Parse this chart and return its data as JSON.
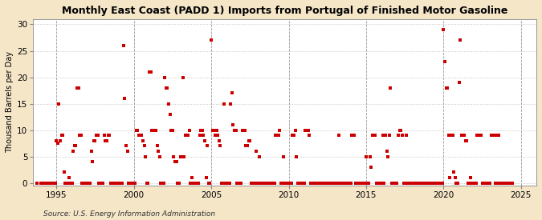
{
  "title": "Monthly East Coast (PADD 1) Imports from Portugal of Finished Motor Gasoline",
  "ylabel": "Thousand Barrels per Day",
  "source": "Source: U.S. Energy Information Administration",
  "figure_bg": "#f5e6c8",
  "axes_bg": "#ffffff",
  "marker_color": "#cc0000",
  "grid_color": "#bbbbbb",
  "vline_color": "#999999",
  "xlim": [
    1993.5,
    2026.0
  ],
  "ylim": [
    -0.5,
    31
  ],
  "yticks": [
    0,
    5,
    10,
    15,
    20,
    25,
    30
  ],
  "xticks": [
    1995,
    2000,
    2005,
    2010,
    2015,
    2020,
    2025
  ],
  "data": [
    [
      1993.75,
      0
    ],
    [
      1994.0,
      0
    ],
    [
      1994.083,
      0
    ],
    [
      1994.167,
      0
    ],
    [
      1994.25,
      0
    ],
    [
      1994.333,
      0
    ],
    [
      1994.417,
      0
    ],
    [
      1994.5,
      0
    ],
    [
      1994.583,
      0
    ],
    [
      1994.667,
      0
    ],
    [
      1994.75,
      0
    ],
    [
      1994.833,
      0
    ],
    [
      1994.917,
      0
    ],
    [
      1995.0,
      8
    ],
    [
      1995.083,
      7.5
    ],
    [
      1995.167,
      15
    ],
    [
      1995.25,
      8
    ],
    [
      1995.333,
      9
    ],
    [
      1995.417,
      9
    ],
    [
      1995.5,
      2
    ],
    [
      1995.583,
      0
    ],
    [
      1995.667,
      0
    ],
    [
      1995.75,
      0
    ],
    [
      1995.833,
      1
    ],
    [
      1995.917,
      0
    ],
    [
      1996.0,
      0
    ],
    [
      1996.083,
      6
    ],
    [
      1996.167,
      7
    ],
    [
      1996.25,
      7
    ],
    [
      1996.333,
      18
    ],
    [
      1996.417,
      18
    ],
    [
      1996.5,
      9
    ],
    [
      1996.583,
      9
    ],
    [
      1996.667,
      0
    ],
    [
      1996.75,
      0
    ],
    [
      1996.833,
      0
    ],
    [
      1996.917,
      0
    ],
    [
      1997.0,
      0
    ],
    [
      1997.083,
      0
    ],
    [
      1997.167,
      0
    ],
    [
      1997.25,
      6
    ],
    [
      1997.333,
      4
    ],
    [
      1997.417,
      8
    ],
    [
      1997.5,
      8
    ],
    [
      1997.583,
      9
    ],
    [
      1997.667,
      9
    ],
    [
      1997.75,
      0
    ],
    [
      1997.833,
      0
    ],
    [
      1997.917,
      0
    ],
    [
      1998.0,
      0
    ],
    [
      1998.083,
      9
    ],
    [
      1998.167,
      8
    ],
    [
      1998.25,
      8
    ],
    [
      1998.333,
      9
    ],
    [
      1998.417,
      9
    ],
    [
      1998.5,
      0
    ],
    [
      1998.583,
      0
    ],
    [
      1998.667,
      0
    ],
    [
      1998.75,
      0
    ],
    [
      1998.833,
      0
    ],
    [
      1998.917,
      0
    ],
    [
      1999.0,
      0
    ],
    [
      1999.083,
      0
    ],
    [
      1999.167,
      0
    ],
    [
      1999.25,
      0
    ],
    [
      1999.333,
      26
    ],
    [
      1999.417,
      16
    ],
    [
      1999.5,
      7
    ],
    [
      1999.583,
      6
    ],
    [
      1999.667,
      0
    ],
    [
      1999.75,
      0
    ],
    [
      1999.833,
      0
    ],
    [
      1999.917,
      0
    ],
    [
      2000.0,
      0
    ],
    [
      2000.083,
      0
    ],
    [
      2000.167,
      10
    ],
    [
      2000.25,
      10
    ],
    [
      2000.333,
      9
    ],
    [
      2000.417,
      9
    ],
    [
      2000.5,
      9
    ],
    [
      2000.583,
      8
    ],
    [
      2000.667,
      7
    ],
    [
      2000.75,
      5
    ],
    [
      2000.833,
      0
    ],
    [
      2000.917,
      0
    ],
    [
      2001.0,
      21
    ],
    [
      2001.083,
      21
    ],
    [
      2001.167,
      10
    ],
    [
      2001.25,
      10
    ],
    [
      2001.333,
      10
    ],
    [
      2001.417,
      10
    ],
    [
      2001.5,
      7
    ],
    [
      2001.583,
      6
    ],
    [
      2001.667,
      5
    ],
    [
      2001.75,
      0
    ],
    [
      2001.833,
      0
    ],
    [
      2001.917,
      0
    ],
    [
      2002.0,
      20
    ],
    [
      2002.083,
      18
    ],
    [
      2002.167,
      18
    ],
    [
      2002.25,
      15
    ],
    [
      2002.333,
      13
    ],
    [
      2002.417,
      10
    ],
    [
      2002.5,
      10
    ],
    [
      2002.583,
      5
    ],
    [
      2002.667,
      4
    ],
    [
      2002.75,
      4
    ],
    [
      2002.833,
      0
    ],
    [
      2002.917,
      0
    ],
    [
      2003.0,
      5
    ],
    [
      2003.083,
      5
    ],
    [
      2003.167,
      20
    ],
    [
      2003.25,
      5
    ],
    [
      2003.333,
      9
    ],
    [
      2003.417,
      9
    ],
    [
      2003.5,
      9
    ],
    [
      2003.583,
      10
    ],
    [
      2003.667,
      0
    ],
    [
      2003.75,
      1
    ],
    [
      2003.833,
      0
    ],
    [
      2003.917,
      0
    ],
    [
      2004.0,
      0
    ],
    [
      2004.083,
      0
    ],
    [
      2004.167,
      0
    ],
    [
      2004.25,
      9
    ],
    [
      2004.333,
      10
    ],
    [
      2004.417,
      10
    ],
    [
      2004.5,
      9
    ],
    [
      2004.583,
      8
    ],
    [
      2004.667,
      1
    ],
    [
      2004.75,
      7
    ],
    [
      2004.833,
      0
    ],
    [
      2004.917,
      0
    ],
    [
      2005.0,
      27
    ],
    [
      2005.083,
      10
    ],
    [
      2005.167,
      10
    ],
    [
      2005.25,
      9
    ],
    [
      2005.333,
      10
    ],
    [
      2005.417,
      9
    ],
    [
      2005.5,
      8
    ],
    [
      2005.583,
      7
    ],
    [
      2005.667,
      0
    ],
    [
      2005.75,
      0
    ],
    [
      2005.833,
      15
    ],
    [
      2005.917,
      0
    ],
    [
      2006.0,
      0
    ],
    [
      2006.083,
      0
    ],
    [
      2006.167,
      0
    ],
    [
      2006.25,
      15
    ],
    [
      2006.333,
      17
    ],
    [
      2006.417,
      11
    ],
    [
      2006.5,
      10
    ],
    [
      2006.583,
      10
    ],
    [
      2006.667,
      0
    ],
    [
      2006.75,
      0
    ],
    [
      2006.833,
      0
    ],
    [
      2006.917,
      0
    ],
    [
      2007.0,
      10
    ],
    [
      2007.083,
      10
    ],
    [
      2007.167,
      10
    ],
    [
      2007.25,
      7
    ],
    [
      2007.333,
      7
    ],
    [
      2007.417,
      8
    ],
    [
      2007.5,
      8
    ],
    [
      2007.583,
      0
    ],
    [
      2007.667,
      0
    ],
    [
      2007.75,
      0
    ],
    [
      2007.833,
      0
    ],
    [
      2007.917,
      6
    ],
    [
      2008.0,
      0
    ],
    [
      2008.083,
      5
    ],
    [
      2008.167,
      0
    ],
    [
      2008.25,
      0
    ],
    [
      2008.333,
      0
    ],
    [
      2008.417,
      0
    ],
    [
      2008.5,
      0
    ],
    [
      2008.583,
      0
    ],
    [
      2008.667,
      0
    ],
    [
      2008.75,
      0
    ],
    [
      2008.833,
      0
    ],
    [
      2008.917,
      0
    ],
    [
      2009.0,
      0
    ],
    [
      2009.083,
      0
    ],
    [
      2009.167,
      9
    ],
    [
      2009.25,
      9
    ],
    [
      2009.333,
      9
    ],
    [
      2009.417,
      10
    ],
    [
      2009.5,
      0
    ],
    [
      2009.583,
      0
    ],
    [
      2009.667,
      5
    ],
    [
      2009.75,
      0
    ],
    [
      2009.833,
      0
    ],
    [
      2009.917,
      0
    ],
    [
      2010.0,
      0
    ],
    [
      2010.083,
      0
    ],
    [
      2010.167,
      0
    ],
    [
      2010.25,
      9
    ],
    [
      2010.333,
      9
    ],
    [
      2010.417,
      10
    ],
    [
      2010.5,
      5
    ],
    [
      2010.583,
      0
    ],
    [
      2010.667,
      0
    ],
    [
      2010.75,
      0
    ],
    [
      2010.833,
      0
    ],
    [
      2010.917,
      0
    ],
    [
      2011.0,
      0
    ],
    [
      2011.083,
      10
    ],
    [
      2011.167,
      10
    ],
    [
      2011.25,
      10
    ],
    [
      2011.333,
      9
    ],
    [
      2011.417,
      0
    ],
    [
      2011.5,
      0
    ],
    [
      2011.583,
      0
    ],
    [
      2011.667,
      0
    ],
    [
      2011.75,
      0
    ],
    [
      2011.833,
      0
    ],
    [
      2011.917,
      0
    ],
    [
      2012.0,
      0
    ],
    [
      2012.083,
      0
    ],
    [
      2012.167,
      0
    ],
    [
      2012.25,
      0
    ],
    [
      2012.333,
      0
    ],
    [
      2012.417,
      0
    ],
    [
      2012.5,
      0
    ],
    [
      2012.583,
      0
    ],
    [
      2012.667,
      0
    ],
    [
      2012.75,
      0
    ],
    [
      2012.833,
      0
    ],
    [
      2012.917,
      0
    ],
    [
      2013.0,
      0
    ],
    [
      2013.083,
      0
    ],
    [
      2013.167,
      0
    ],
    [
      2013.25,
      9
    ],
    [
      2013.333,
      0
    ],
    [
      2013.417,
      0
    ],
    [
      2013.5,
      0
    ],
    [
      2013.583,
      0
    ],
    [
      2013.667,
      0
    ],
    [
      2013.75,
      0
    ],
    [
      2013.833,
      0
    ],
    [
      2013.917,
      0
    ],
    [
      2014.0,
      0
    ],
    [
      2014.083,
      9
    ],
    [
      2014.167,
      9
    ],
    [
      2014.25,
      9
    ],
    [
      2014.333,
      0
    ],
    [
      2014.417,
      0
    ],
    [
      2014.5,
      0
    ],
    [
      2014.583,
      0
    ],
    [
      2014.667,
      0
    ],
    [
      2014.75,
      0
    ],
    [
      2014.833,
      0
    ],
    [
      2014.917,
      0
    ],
    [
      2015.0,
      5
    ],
    [
      2015.083,
      0
    ],
    [
      2015.167,
      0
    ],
    [
      2015.25,
      5
    ],
    [
      2015.333,
      3
    ],
    [
      2015.417,
      9
    ],
    [
      2015.5,
      9
    ],
    [
      2015.583,
      9
    ],
    [
      2015.667,
      0
    ],
    [
      2015.75,
      0
    ],
    [
      2015.833,
      0
    ],
    [
      2015.917,
      0
    ],
    [
      2016.0,
      0
    ],
    [
      2016.083,
      9
    ],
    [
      2016.167,
      0
    ],
    [
      2016.25,
      9
    ],
    [
      2016.333,
      6
    ],
    [
      2016.417,
      5
    ],
    [
      2016.5,
      9
    ],
    [
      2016.583,
      18
    ],
    [
      2016.667,
      0
    ],
    [
      2016.75,
      0
    ],
    [
      2016.833,
      0
    ],
    [
      2016.917,
      0
    ],
    [
      2017.0,
      0
    ],
    [
      2017.083,
      9
    ],
    [
      2017.167,
      10
    ],
    [
      2017.25,
      10
    ],
    [
      2017.333,
      9
    ],
    [
      2017.417,
      0
    ],
    [
      2017.5,
      0
    ],
    [
      2017.583,
      9
    ],
    [
      2017.667,
      0
    ],
    [
      2017.75,
      0
    ],
    [
      2017.833,
      0
    ],
    [
      2017.917,
      0
    ],
    [
      2018.0,
      0
    ],
    [
      2018.083,
      0
    ],
    [
      2018.167,
      0
    ],
    [
      2018.25,
      0
    ],
    [
      2018.333,
      0
    ],
    [
      2018.417,
      0
    ],
    [
      2018.5,
      0
    ],
    [
      2018.583,
      0
    ],
    [
      2018.667,
      0
    ],
    [
      2018.75,
      0
    ],
    [
      2018.833,
      0
    ],
    [
      2018.917,
      0
    ],
    [
      2019.0,
      0
    ],
    [
      2019.083,
      0
    ],
    [
      2019.167,
      0
    ],
    [
      2019.25,
      0
    ],
    [
      2019.333,
      0
    ],
    [
      2019.417,
      0
    ],
    [
      2019.5,
      0
    ],
    [
      2019.583,
      0
    ],
    [
      2019.667,
      0
    ],
    [
      2019.75,
      0
    ],
    [
      2019.833,
      0
    ],
    [
      2019.917,
      0
    ],
    [
      2020.0,
      29
    ],
    [
      2020.083,
      23
    ],
    [
      2020.167,
      18
    ],
    [
      2020.25,
      18
    ],
    [
      2020.333,
      9
    ],
    [
      2020.417,
      1
    ],
    [
      2020.5,
      9
    ],
    [
      2020.583,
      9
    ],
    [
      2020.667,
      2
    ],
    [
      2020.75,
      1
    ],
    [
      2020.833,
      0
    ],
    [
      2020.917,
      0
    ],
    [
      2021.0,
      19
    ],
    [
      2021.083,
      27
    ],
    [
      2021.167,
      9
    ],
    [
      2021.25,
      9
    ],
    [
      2021.333,
      9
    ],
    [
      2021.417,
      8
    ],
    [
      2021.5,
      8
    ],
    [
      2021.583,
      0
    ],
    [
      2021.667,
      0
    ],
    [
      2021.75,
      1
    ],
    [
      2021.833,
      0
    ],
    [
      2021.917,
      0
    ],
    [
      2022.0,
      0
    ],
    [
      2022.083,
      0
    ],
    [
      2022.167,
      9
    ],
    [
      2022.25,
      9
    ],
    [
      2022.333,
      9
    ],
    [
      2022.417,
      9
    ],
    [
      2022.5,
      0
    ],
    [
      2022.583,
      0
    ],
    [
      2022.667,
      0
    ],
    [
      2022.75,
      0
    ],
    [
      2022.833,
      0
    ],
    [
      2022.917,
      0
    ],
    [
      2023.0,
      0
    ],
    [
      2023.083,
      9
    ],
    [
      2023.167,
      9
    ],
    [
      2023.25,
      9
    ],
    [
      2023.333,
      0
    ],
    [
      2023.417,
      9
    ],
    [
      2023.5,
      0
    ],
    [
      2023.583,
      9
    ],
    [
      2023.667,
      0
    ],
    [
      2023.75,
      0
    ],
    [
      2023.833,
      0
    ],
    [
      2023.917,
      0
    ],
    [
      2024.0,
      0
    ],
    [
      2024.083,
      0
    ],
    [
      2024.167,
      0
    ],
    [
      2024.25,
      0
    ],
    [
      2024.333,
      0
    ],
    [
      2024.417,
      0
    ]
  ]
}
